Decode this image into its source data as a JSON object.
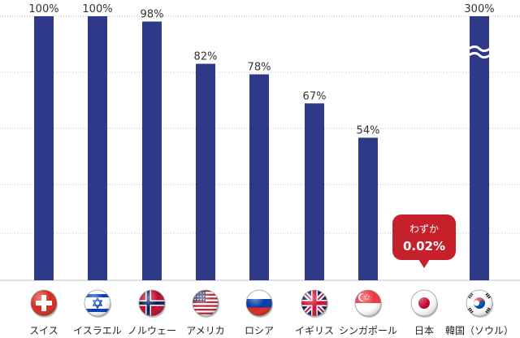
{
  "chart_data": {
    "type": "bar",
    "categories": [
      "スイス",
      "イスラエル",
      "ノルウェー",
      "アメリカ",
      "ロシア",
      "イギリス",
      "シンガポール",
      "日本",
      "韓国（ソウル）"
    ],
    "values": [
      100,
      100,
      98,
      82,
      78,
      67,
      54,
      0.02,
      300
    ],
    "value_labels": [
      "100%",
      "100%",
      "98%",
      "82%",
      "78%",
      "67%",
      "54%",
      "",
      "300%"
    ],
    "ylim": [
      0,
      100
    ],
    "axis_break_on": "韓国（ソウル）",
    "grid": true,
    "colors": {
      "bar": "#2e3a87",
      "callout": "#c6202a",
      "grid": "#bdbdbd",
      "text": "#333333"
    },
    "callout": {
      "category": "日本",
      "line1": "わずか",
      "line2": "0.02%"
    },
    "flags": [
      "switzerland-flag",
      "israel-flag",
      "norway-flag",
      "usa-flag",
      "russia-flag",
      "uk-flag",
      "singapore-flag",
      "japan-flag",
      "south-korea-flag"
    ]
  }
}
